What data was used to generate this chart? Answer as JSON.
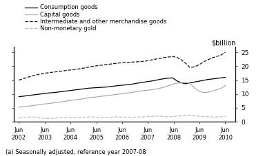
{
  "title": "$billion",
  "footnote": "(a) Seasonally adjusted, reference year 2007-08",
  "legend_entries": [
    "Consumption goods",
    "Capital goods",
    "Intermediate and other merchandise goods",
    "Non-monetary gold"
  ],
  "x_tick_labels": [
    "Jun\n2002",
    "Jun\n2003",
    "Jun\n2004",
    "Jun\n2005",
    "Jun\n2006",
    "Jun\n2007",
    "Jun\n2008",
    "Jun\n2009",
    "Jun\n2010"
  ],
  "ylim": [
    0,
    27
  ],
  "yticks": [
    0,
    5,
    10,
    15,
    20,
    25
  ],
  "consumption_goods": [
    9.0,
    9.2,
    9.4,
    9.6,
    9.8,
    10.0,
    10.2,
    10.4,
    10.5,
    10.7,
    10.9,
    11.1,
    11.3,
    11.5,
    11.7,
    11.9,
    12.1,
    12.2,
    12.3,
    12.4,
    12.5,
    12.7,
    12.9,
    13.1,
    13.2,
    13.4,
    13.6,
    13.9,
    14.1,
    14.4,
    14.6,
    14.9,
    15.2,
    15.5,
    15.7,
    15.8,
    14.7,
    14.0,
    13.7,
    14.0,
    14.3,
    14.6,
    14.9,
    15.2,
    15.4,
    15.6,
    15.8,
    16.0
  ],
  "capital_goods": [
    5.2,
    5.4,
    5.6,
    5.8,
    6.0,
    6.2,
    6.4,
    6.6,
    6.8,
    7.0,
    7.2,
    7.5,
    7.7,
    7.9,
    8.1,
    8.4,
    8.6,
    8.8,
    9.0,
    9.2,
    9.4,
    9.6,
    9.8,
    10.0,
    10.2,
    10.4,
    10.6,
    10.9,
    11.1,
    11.3,
    11.5,
    11.7,
    12.0,
    12.4,
    12.9,
    13.5,
    13.9,
    14.1,
    14.2,
    13.7,
    12.2,
    11.0,
    10.5,
    10.6,
    11.0,
    11.5,
    12.0,
    13.0
  ],
  "intermediate_goods": [
    15.0,
    15.5,
    16.0,
    16.5,
    16.9,
    17.2,
    17.5,
    17.7,
    17.9,
    18.1,
    18.3,
    18.5,
    18.7,
    18.9,
    19.1,
    19.4,
    19.7,
    20.0,
    20.2,
    20.4,
    20.6,
    20.8,
    21.0,
    21.2,
    21.3,
    21.4,
    21.5,
    21.6,
    21.7,
    21.9,
    22.2,
    22.5,
    22.8,
    23.1,
    23.3,
    23.5,
    23.2,
    22.3,
    21.0,
    19.5,
    19.8,
    20.5,
    21.5,
    22.3,
    23.0,
    23.5,
    24.0,
    25.0
  ],
  "non_monetary_gold": [
    1.3,
    1.4,
    1.6,
    1.8,
    1.5,
    1.3,
    1.2,
    1.2,
    1.3,
    1.4,
    1.5,
    1.5,
    1.4,
    1.4,
    1.5,
    1.6,
    1.7,
    1.7,
    1.6,
    1.5,
    1.5,
    1.6,
    1.7,
    1.7,
    1.6,
    1.5,
    1.5,
    1.6,
    1.7,
    1.8,
    1.9,
    2.0,
    2.0,
    1.9,
    1.8,
    1.8,
    2.0,
    2.1,
    2.2,
    2.2,
    2.1,
    2.0,
    1.9,
    1.8,
    1.7,
    1.7,
    1.8,
    1.9
  ]
}
